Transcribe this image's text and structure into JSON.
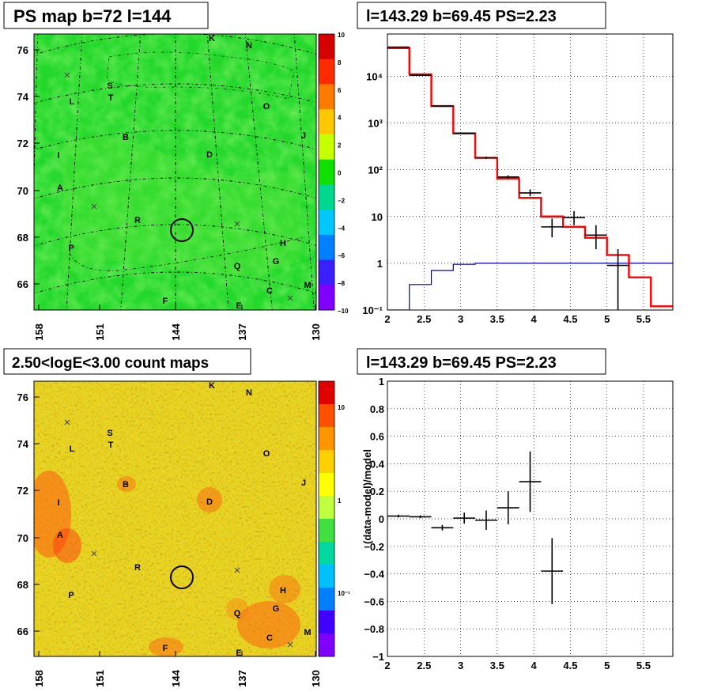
{
  "panels": {
    "ps_map": {
      "title": "PS map b=72 l=144",
      "colorbar_ticks": [
        "10",
        "8",
        "6",
        "4",
        "2",
        "0",
        "−2",
        "−4",
        "−6",
        "−8",
        "−10"
      ],
      "colorbar_colors": [
        "#d40000",
        "#ff2a00",
        "#ff7a00",
        "#ffc800",
        "#c8ff00",
        "#10e000",
        "#00d890",
        "#00c8ff",
        "#0080ff",
        "#3a20ff",
        "#8000ff"
      ]
    },
    "count_map": {
      "title": "2.50<logE<3.00 count maps",
      "colorbar_ticks": [
        "10",
        "1",
        "10⁻¹"
      ],
      "colorbar_colors": [
        "#e00000",
        "#ff5000",
        "#ff9600",
        "#ffd000",
        "#ffff00",
        "#c0ff40",
        "#40e040",
        "#00d8a0",
        "#00c0ff",
        "#0080ff",
        "#4000ff",
        "#8000ff"
      ]
    },
    "spectrum": {
      "title": "l=143.29 b=69.45 PS=2.23"
    },
    "residual": {
      "title": "l=143.29 b=69.45 PS=2.23",
      "ylabel": "(data-model)/model"
    }
  },
  "map_axes": {
    "lon_ticks": [
      "158",
      "151",
      "144",
      "137",
      "130"
    ],
    "lat_ticks": [
      "76",
      "74",
      "72",
      "70",
      "68",
      "66"
    ]
  },
  "sources": [
    "K",
    "N",
    "S",
    "T",
    "L",
    "O",
    "B",
    "J",
    "I",
    "D",
    "A",
    "R",
    "H",
    "P",
    "G",
    "Q",
    "C",
    "M",
    "F",
    "E"
  ],
  "chart_data": [
    {
      "type": "line",
      "name": "spectrum",
      "title": "l=143.29 b=69.45 PS=2.23",
      "yscale": "log",
      "xlim": [
        2,
        5.9
      ],
      "ylim": [
        0.1,
        80000
      ],
      "x_ticks": [
        "2",
        "2.5",
        "3",
        "3.5",
        "4",
        "4.5",
        "5",
        "5.5"
      ],
      "y_ticks": [
        "10⁻¹",
        "1",
        "10",
        "10²",
        "10³",
        "10⁴"
      ],
      "model_total": {
        "color": "#ff0000",
        "edges": [
          2.0,
          2.3,
          2.6,
          2.9,
          3.2,
          3.5,
          3.8,
          4.1,
          4.4,
          4.7,
          5.0,
          5.3,
          5.6,
          5.9
        ],
        "values": [
          40000,
          11000,
          2300,
          600,
          180,
          65,
          25,
          10,
          6,
          3.5,
          1.5,
          0.5,
          0.12
        ]
      },
      "model_ps": {
        "color": "#0000c0",
        "edges": [
          2.0,
          2.3,
          2.6,
          2.9,
          3.2,
          3.5,
          3.8,
          4.1,
          4.4,
          4.7,
          5.0,
          5.3,
          5.6,
          5.9
        ],
        "values": [
          0.1,
          0.35,
          0.7,
          0.95,
          1.0,
          1.0,
          1.0,
          1.0,
          1.0,
          1.0,
          1.0,
          1.0,
          1.0
        ]
      },
      "data_points": [
        {
          "x": 2.15,
          "y": 42000,
          "ylo": 41500,
          "yhi": 42500
        },
        {
          "x": 2.45,
          "y": 10500,
          "ylo": 10300,
          "yhi": 10700
        },
        {
          "x": 2.75,
          "y": 2300,
          "ylo": 2250,
          "yhi": 2350
        },
        {
          "x": 3.05,
          "y": 600,
          "ylo": 580,
          "yhi": 620
        },
        {
          "x": 3.35,
          "y": 180,
          "ylo": 170,
          "yhi": 190
        },
        {
          "x": 3.65,
          "y": 70,
          "ylo": 64,
          "yhi": 76
        },
        {
          "x": 3.95,
          "y": 32,
          "ylo": 27,
          "yhi": 38
        },
        {
          "x": 4.25,
          "y": 6,
          "ylo": 3.6,
          "yhi": 9
        },
        {
          "x": 4.55,
          "y": 9.5,
          "ylo": 6.5,
          "yhi": 13
        },
        {
          "x": 4.85,
          "y": 4,
          "ylo": 2,
          "yhi": 6.5
        },
        {
          "x": 5.15,
          "y": 0.9,
          "ylo": 0.1,
          "yhi": 2
        }
      ]
    },
    {
      "type": "scatter",
      "name": "residual",
      "title": "l=143.29 b=69.45 PS=2.23",
      "ylabel": "(data-model)/model",
      "xlim": [
        2,
        5.9
      ],
      "ylim": [
        -1,
        1
      ],
      "x_ticks": [
        "2",
        "2.5",
        "3",
        "3.5",
        "4",
        "4.5",
        "5",
        "5.5"
      ],
      "y_ticks": [
        "1",
        "0.8",
        "0.6",
        "0.4",
        "0.2",
        "0",
        "−0.2",
        "−0.4",
        "−0.6",
        "−0.8",
        "−1"
      ],
      "points": [
        {
          "x": 2.15,
          "y": 0.02,
          "err": 0.01
        },
        {
          "x": 2.45,
          "y": 0.015,
          "err": 0.01
        },
        {
          "x": 2.75,
          "y": -0.065,
          "err": 0.02
        },
        {
          "x": 3.05,
          "y": 0.005,
          "err": 0.04
        },
        {
          "x": 3.35,
          "y": -0.01,
          "err": 0.07
        },
        {
          "x": 3.65,
          "y": 0.08,
          "err": 0.12
        },
        {
          "x": 3.95,
          "y": 0.27,
          "err": 0.22
        },
        {
          "x": 4.25,
          "y": -0.38,
          "err": 0.24
        }
      ]
    }
  ]
}
